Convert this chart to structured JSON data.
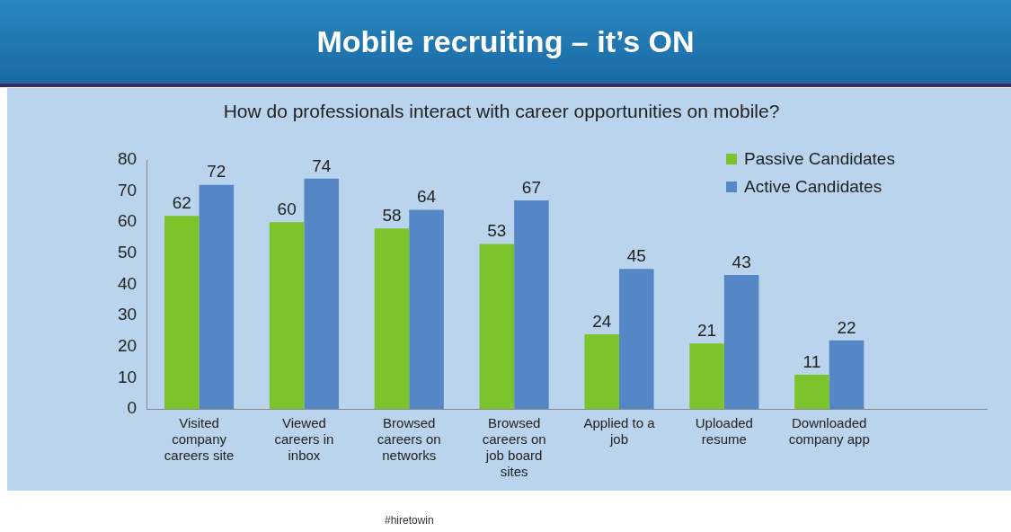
{
  "chart_data": {
    "type": "bar",
    "title": "Mobile recruiting – it’s ON",
    "subtitle": "How do professionals interact with career opportunities on mobile?",
    "categories": [
      "Visited company careers site",
      "Viewed careers in inbox",
      "Browsed careers on networks",
      "Browsed careers on job board sites",
      "Applied to a job",
      "Uploaded resume",
      "Downloaded company app",
      null
    ],
    "series": [
      {
        "name": "Passive Candidates",
        "color": "#7cc42c",
        "values": [
          62,
          60,
          58,
          53,
          24,
          21,
          11,
          null
        ]
      },
      {
        "name": "Active Candidates",
        "color": "#5587c6",
        "values": [
          72,
          74,
          64,
          67,
          45,
          43,
          22,
          null
        ]
      }
    ],
    "ylim": [
      0,
      80
    ],
    "yticks": [
      0,
      10,
      20,
      30,
      40,
      50,
      60,
      70,
      80
    ],
    "grid": false,
    "legend": "top right",
    "data_labels": true,
    "annotations": [
      "#hiretowin"
    ]
  }
}
